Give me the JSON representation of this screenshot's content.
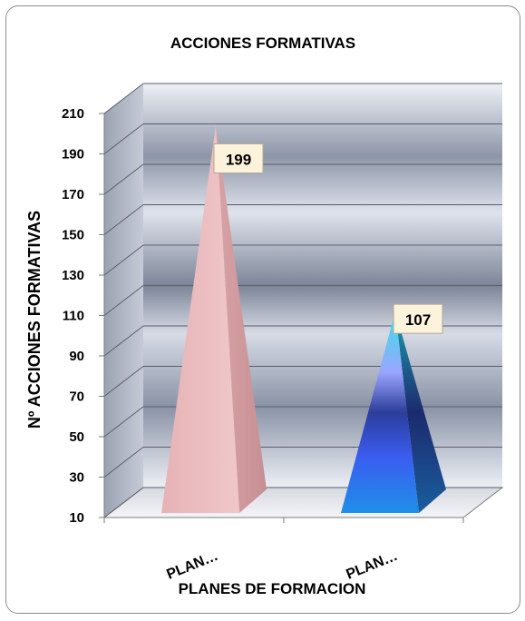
{
  "chart_data": {
    "type": "bar",
    "title": "ACCIONES FORMATIVAS",
    "xlabel": "PLANES DE FORMACION",
    "ylabel": "Nº ACCIONES FORMATIVAS",
    "categories": [
      "PLAN…",
      "PLAN…"
    ],
    "values": [
      199,
      107
    ],
    "data_labels": [
      "199",
      "107"
    ],
    "y_ticks": [
      "10",
      "30",
      "50",
      "70",
      "90",
      "110",
      "130",
      "150",
      "170",
      "190",
      "210"
    ],
    "ylim": [
      10,
      210
    ],
    "grid": true,
    "legend": "none",
    "colors": [
      "#e8b4b8",
      "#3a7fe0"
    ]
  }
}
